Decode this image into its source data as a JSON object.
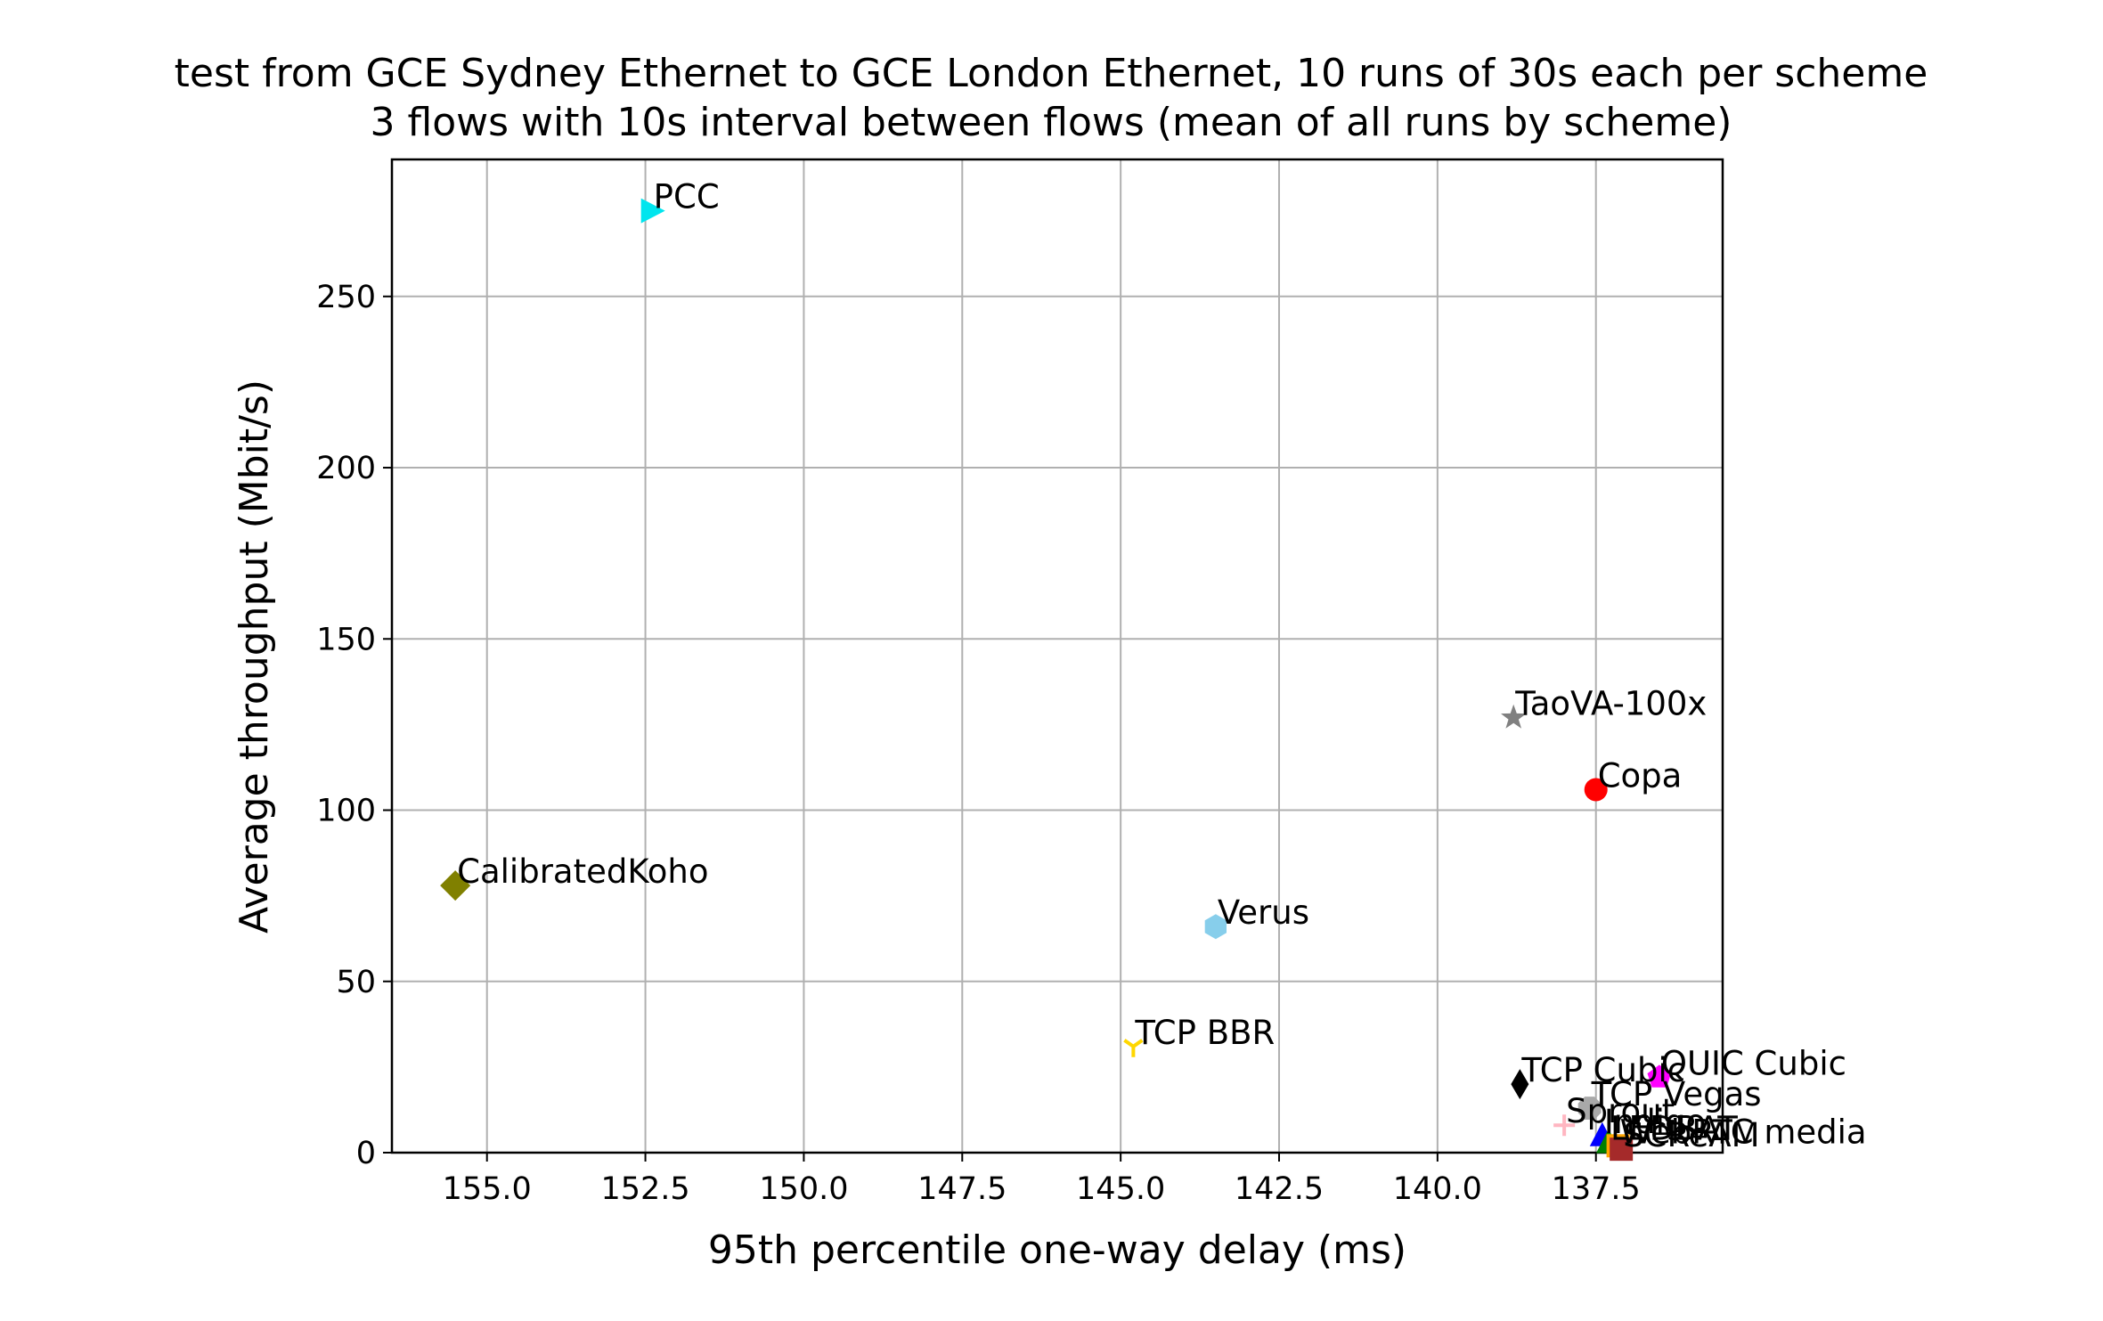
{
  "chart_data": {
    "type": "scatter",
    "title": "test from GCE Sydney Ethernet to GCE London Ethernet, 10 runs of 30s each per scheme",
    "subtitle": "3 flows with 10s interval between flows (mean of all runs by scheme)",
    "xlabel": "95th percentile one-way delay (ms)",
    "ylabel": "Average throughput (Mbit/s)",
    "xlim": [
      156.5,
      135.5
    ],
    "ylim": [
      0,
      290
    ],
    "x_inverted": true,
    "grid": true,
    "x_ticks": [
      155.0,
      152.5,
      150.0,
      147.5,
      145.0,
      142.5,
      140.0,
      137.5
    ],
    "x_tick_labels": [
      "155.0",
      "152.5",
      "150.0",
      "147.5",
      "145.0",
      "142.5",
      "140.0",
      "137.5"
    ],
    "y_ticks": [
      0,
      50,
      100,
      150,
      200,
      250
    ],
    "y_tick_labels": [
      "0",
      "50",
      "100",
      "150",
      "200",
      "250"
    ],
    "points": [
      {
        "name": "PCC",
        "x": 152.4,
        "y": 275,
        "color": "#00e5ee",
        "marker": "triangle-right"
      },
      {
        "name": "TaoVA-100x",
        "x": 138.8,
        "y": 127,
        "color": "#808080",
        "marker": "star"
      },
      {
        "name": "Copa",
        "x": 137.5,
        "y": 106,
        "color": "#ff0000",
        "marker": "circle"
      },
      {
        "name": "CalibratedKoho",
        "x": 155.5,
        "y": 78,
        "color": "#808000",
        "marker": "diamond"
      },
      {
        "name": "Verus",
        "x": 143.5,
        "y": 66,
        "color": "#87ceeb",
        "marker": "hexagon"
      },
      {
        "name": "TCP BBR",
        "x": 144.8,
        "y": 31,
        "color": "#ffd700",
        "marker": "tri-down"
      },
      {
        "name": "QUIC Cubic",
        "x": 136.5,
        "y": 22,
        "color": "#ff00ff",
        "marker": "pentagon"
      },
      {
        "name": "TCP Cubic",
        "x": 138.7,
        "y": 20,
        "color": "#000000",
        "marker": "thin-diamond"
      },
      {
        "name": "TCP Vegas",
        "x": 137.6,
        "y": 13,
        "color": "#a9a9a9",
        "marker": "octagon"
      },
      {
        "name": "Sprout",
        "x": 138.0,
        "y": 8,
        "color": "#ffb6c1",
        "marker": "plus"
      },
      {
        "name": "Indigo",
        "x": 137.4,
        "y": 5,
        "color": "#0000ff",
        "marker": "triangle-up"
      },
      {
        "name": "LEDBAT",
        "x": 137.3,
        "y": 3,
        "color": "#008000",
        "marker": "triangle-up"
      },
      {
        "name": "WebRTC media",
        "x": 137.15,
        "y": 2,
        "color": "#ffa500",
        "marker": "square"
      },
      {
        "name": "SCReAM",
        "x": 137.1,
        "y": 1,
        "color": "#a52a2a",
        "marker": "square"
      }
    ],
    "visible_labels": [
      {
        "point": "PCC",
        "text": "PCC"
      },
      {
        "point": "TaoVA-100x",
        "text": "TaoVA-100x"
      },
      {
        "point": "Copa",
        "text": "Copa"
      },
      {
        "point": "CalibratedKoho",
        "text": "CalibratedKoho"
      },
      {
        "point": "Verus",
        "text": "Verus"
      },
      {
        "point": "TCP BBR",
        "text": "TCP BBR"
      },
      {
        "point": "QUIC Cubic",
        "text": "QUIC Cubic"
      },
      {
        "point": "TCP Cubic",
        "text": "TCP Cubic"
      },
      {
        "point": "TCP Vegas",
        "text": "TCP Vegas"
      },
      {
        "point": "Sprout",
        "text": "Sprout"
      },
      {
        "point": "Indigo",
        "text": "Indigo"
      },
      {
        "point": "LEDBAT",
        "text": "LEDBAT"
      },
      {
        "point": "WebRTC media",
        "text": "WebRTC media"
      },
      {
        "point": "SCReAM",
        "text": "SCReAM"
      }
    ]
  }
}
